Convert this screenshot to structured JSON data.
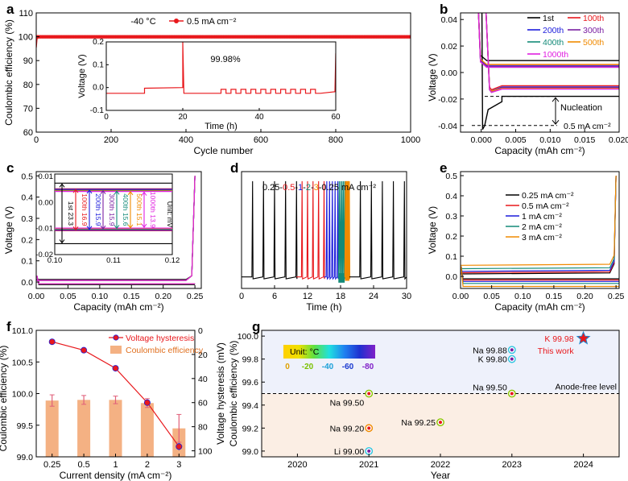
{
  "figure": {
    "panel_labels": [
      "a",
      "b",
      "c",
      "d",
      "e",
      "f",
      "g"
    ]
  },
  "chart_data": [
    {
      "panel": "a",
      "type": "line",
      "xlabel": "Cycle number",
      "ylabel": "Coulombic efficiency (%)",
      "xlim": [
        0,
        1000
      ],
      "ylim": [
        60,
        110
      ],
      "xticks": [
        0,
        200,
        400,
        600,
        800,
        1000
      ],
      "yticks": [
        60,
        70,
        80,
        90,
        100,
        110
      ],
      "annotation": "-40 °C",
      "legend": "0.5 mA cm⁻²",
      "series": [
        {
          "name": "0.5 mA cm⁻²",
          "x": [
            0,
            2,
            5,
            10,
            50,
            100,
            1000
          ],
          "y": [
            95.5,
            99.0,
            99.7,
            99.9,
            99.98,
            99.98,
            99.98
          ],
          "color": "#e8181c"
        }
      ],
      "inset": {
        "xlabel": "Time (h)",
        "ylabel": "Voltage (V)",
        "xlim": [
          0,
          60
        ],
        "ylim": [
          -0.1,
          0.2
        ],
        "xticks": [
          0,
          20,
          40,
          60
        ],
        "yticks": [
          -0.1,
          0.0,
          0.1,
          0.2
        ],
        "annotation": "99.98%",
        "series": [
          {
            "name": "voltage",
            "x": [
              0,
              10,
              10.2,
              20,
              20,
              20.4,
              30,
              30,
              60,
              60
            ],
            "y": [
              -0.025,
              -0.025,
              -0.002,
              0.005,
              0.2,
              -0.025,
              -0.025,
              -0.025,
              -0.02,
              0.15
            ]
          }
        ]
      }
    },
    {
      "panel": "b",
      "type": "line",
      "xlabel": "Capacity (mAh cm⁻²)",
      "ylabel": "Voltage (V)",
      "xlim": [
        -0.003,
        0.02
      ],
      "ylim": [
        -0.045,
        0.045
      ],
      "xticks": [
        0.0,
        0.005,
        0.01,
        0.015,
        0.02
      ],
      "xtick_labels": [
        "0.000",
        "0.005",
        "0.010",
        "0.015",
        "0.020"
      ],
      "yticks": [
        -0.04,
        -0.02,
        0.0,
        0.02,
        0.04
      ],
      "ytick_labels": [
        "-0.04",
        "-0.02",
        "0.00",
        "0.02",
        "0.04"
      ],
      "annotations": [
        "Nucleation",
        "0.5 mA cm⁻²"
      ],
      "series": [
        {
          "name": "1st",
          "color": "#000000",
          "charge": 0.009,
          "discharge": -0.018,
          "nuc": -0.04
        },
        {
          "name": "100th",
          "color": "#e8181c",
          "charge": 0.006,
          "discharge": -0.01,
          "nuc": -0.013
        },
        {
          "name": "200th",
          "color": "#1c1cdc",
          "charge": 0.005,
          "discharge": -0.011,
          "nuc": -0.014
        },
        {
          "name": "300th",
          "color": "#7a1fa2",
          "charge": 0.0045,
          "discharge": -0.0115,
          "nuc": -0.014
        },
        {
          "name": "400th",
          "color": "#138a78",
          "charge": 0.004,
          "discharge": -0.012,
          "nuc": -0.015
        },
        {
          "name": "500th",
          "color": "#f08a00",
          "charge": 0.006,
          "discharge": -0.012,
          "nuc": -0.014
        },
        {
          "name": "1000th",
          "color": "#e020e0",
          "charge": 0.004,
          "discharge": -0.0125,
          "nuc": -0.015
        }
      ]
    },
    {
      "panel": "c",
      "type": "line",
      "xlabel": "Capacity (mAh cm⁻²)",
      "ylabel": "Voltage (V)",
      "xlim": [
        0,
        0.26
      ],
      "ylim": [
        -0.03,
        0.52
      ],
      "xticks": [
        0.0,
        0.05,
        0.1,
        0.15,
        0.2,
        0.25
      ],
      "xtick_labels": [
        "0.00",
        "0.05",
        "0.10",
        "0.15",
        "0.20",
        "0.25"
      ],
      "yticks": [
        0.0,
        0.1,
        0.2,
        0.3,
        0.4,
        0.5
      ],
      "ytick_labels": [
        "0.0",
        "0.1",
        "0.2",
        "0.3",
        "0.4",
        "0.5"
      ],
      "inset": {
        "xlim": [
          0.1,
          0.12
        ],
        "ylim": [
          -0.02,
          0.011
        ],
        "xticks": [
          0.1,
          0.11,
          0.12
        ],
        "xtick_labels": [
          "0.10",
          "0.11",
          "0.12"
        ],
        "yticks": [
          -0.02,
          -0.01,
          0.0,
          0.01
        ],
        "ytick_labels": [
          "-0.02",
          "-0.01",
          "0.00",
          "0.01"
        ],
        "unit_label": "Unit: mV",
        "hysteresis": [
          {
            "label": "1st",
            "value": "23.3",
            "color": "#000000"
          },
          {
            "label": "100th",
            "value": "16.9",
            "color": "#e8181c"
          },
          {
            "label": "200th",
            "value": "15.9",
            "color": "#1c1cdc"
          },
          {
            "label": "300th",
            "value": "15.9",
            "color": "#7a1fa2"
          },
          {
            "label": "400th",
            "value": "15.6",
            "color": "#138a78"
          },
          {
            "label": "500th",
            "value": "15.1",
            "color": "#f08a00"
          },
          {
            "label": "1000th",
            "value": "13.9",
            "color": "#e020e0"
          }
        ]
      }
    },
    {
      "panel": "d",
      "type": "line",
      "xlabel": "Time (h)",
      "ylabel": "",
      "xlim": [
        0,
        30
      ],
      "ylim": [
        -0.06,
        0.55
      ],
      "xticks": [
        0,
        6,
        12,
        18,
        24,
        30
      ],
      "title_parts": [
        {
          "text": "0.25-",
          "color": "#000000"
        },
        {
          "text": "0.5",
          "color": "#e8181c"
        },
        {
          "text": "-",
          "color": "#000000"
        },
        {
          "text": "1",
          "color": "#1c1cdc"
        },
        {
          "text": "-",
          "color": "#000000"
        },
        {
          "text": "2",
          "color": "#138a78"
        },
        {
          "text": "-",
          "color": "#000000"
        },
        {
          "text": "3",
          "color": "#f08a00"
        },
        {
          "text": "-0.25 mA cm⁻²",
          "color": "#000000"
        }
      ],
      "segments": [
        {
          "rate": "0.25",
          "color": "#000000",
          "t_start": 0,
          "t_end": 10,
          "spikes": [
            2,
            4,
            6,
            8,
            10
          ]
        },
        {
          "rate": "0.5",
          "color": "#e8181c",
          "t_start": 10,
          "t_end": 15,
          "spikes": [
            11,
            12,
            13,
            14,
            15
          ]
        },
        {
          "rate": "1",
          "color": "#1c1cdc",
          "t_start": 15,
          "t_end": 17.5,
          "spikes": [
            15.5,
            16,
            16.5,
            17,
            17.5
          ]
        },
        {
          "rate": "2",
          "color": "#138a78",
          "t_start": 17.5,
          "t_end": 18.75,
          "spikes": [
            17.75,
            18,
            18.25,
            18.5,
            18.75
          ]
        },
        {
          "rate": "3",
          "color": "#f08a00",
          "t_start": 18.75,
          "t_end": 19.6,
          "spikes": [
            18.9,
            19.1,
            19.3,
            19.45,
            19.6
          ]
        },
        {
          "rate": "0.25",
          "color": "#000000",
          "t_start": 19.6,
          "t_end": 30,
          "spikes": [
            21.6,
            23.6,
            25.6,
            27.6,
            29.6
          ]
        }
      ]
    },
    {
      "panel": "e",
      "type": "line",
      "xlabel": "Capacity (mAh cm⁻²)",
      "ylabel": "Voltage (V)",
      "xlim": [
        0,
        0.255
      ],
      "ylim": [
        -0.06,
        0.52
      ],
      "xticks": [
        0.0,
        0.05,
        0.1,
        0.15,
        0.2,
        0.25
      ],
      "xtick_labels": [
        "0.00",
        "0.05",
        "0.10",
        "0.15",
        "0.20",
        "0.25"
      ],
      "yticks": [
        0.0,
        0.1,
        0.2,
        0.3,
        0.4,
        0.5
      ],
      "ytick_labels": [
        "0.0",
        "0.1",
        "0.2",
        "0.3",
        "0.4",
        "0.5"
      ],
      "series": [
        {
          "name": "0.25 mA cm⁻²",
          "color": "#000000",
          "charge": 0.012,
          "discharge": -0.012
        },
        {
          "name": "0.5 mA cm⁻²",
          "color": "#e8181c",
          "charge": 0.018,
          "discharge": -0.018
        },
        {
          "name": "1 mA cm⁻²",
          "color": "#1c1cdc",
          "charge": 0.025,
          "discharge": -0.025
        },
        {
          "name": "2 mA cm⁻²",
          "color": "#138a78",
          "charge": 0.038,
          "discharge": -0.035
        },
        {
          "name": "3 mA cm⁻²",
          "color": "#f08a00",
          "charge": 0.055,
          "discharge": -0.05
        }
      ]
    },
    {
      "panel": "f",
      "type": "bar",
      "xlabel": "Current density (mA cm⁻²)",
      "ylabel": "Coulombic efficiency (%)",
      "y2label": "Voltage hysteresis (mV)",
      "categories": [
        "0.25",
        "0.5",
        "1",
        "2",
        "3"
      ],
      "ylim": [
        99.0,
        101.0
      ],
      "yticks": [
        99.0,
        99.5,
        100.0,
        100.5,
        101.0
      ],
      "ytick_labels": [
        "99.0",
        "99.5",
        "100.0",
        "100.5",
        "101.0"
      ],
      "y2lim": [
        0,
        105
      ],
      "y2ticks": [
        0,
        20,
        40,
        60,
        80,
        100
      ],
      "series": [
        {
          "name": "Coulombic efficiency",
          "type": "bar",
          "color": "#f4b183",
          "values": [
            99.89,
            99.9,
            99.9,
            99.85,
            99.45
          ],
          "errors": [
            0.09,
            0.07,
            0.06,
            0.07,
            0.22
          ]
        },
        {
          "name": "Voltage hysteresis",
          "type": "line",
          "color": "#e8181c",
          "axis": "y2",
          "values": [
            9.5,
            16.5,
            31.5,
            60.0,
            96.5
          ],
          "errors": [
            0.8,
            0.8,
            0.8,
            1.5,
            3.0
          ]
        }
      ],
      "legend": [
        "Voltage hysteresis",
        "Coulombic efficiency"
      ]
    },
    {
      "panel": "g",
      "type": "scatter",
      "xlabel": "Year",
      "ylabel": "Coulombic efficiency (%)",
      "xlim": [
        2019.5,
        2024.5
      ],
      "ylim": [
        98.95,
        100.05
      ],
      "xticks": [
        2020,
        2021,
        2022,
        2023,
        2024
      ],
      "yticks": [
        99.0,
        99.2,
        99.4,
        99.6,
        99.8,
        100.0
      ],
      "ytick_labels": [
        "99.0",
        "99.2",
        "99.4",
        "99.6",
        "99.8",
        "100.0"
      ],
      "threshold": {
        "y": 99.5,
        "label": "Anode-free level"
      },
      "colorbar": {
        "title": "Unit: °C",
        "ticks": [
          "0",
          "-20",
          "-40",
          "-60",
          "-80"
        ],
        "tick_colors": [
          "#e0a000",
          "#7ac000",
          "#1aa0d8",
          "#1838d0",
          "#8020c8"
        ]
      },
      "points": [
        {
          "label": "Li 99.00",
          "x": 2021,
          "y": 99.0,
          "color": "#2cc4e0"
        },
        {
          "label": "Na 99.20",
          "x": 2021,
          "y": 99.2,
          "color": "#f08a00"
        },
        {
          "label": "Na 99.50",
          "x": 2021,
          "y": 99.5,
          "color": "#8ac400"
        },
        {
          "label": "Na 99.25",
          "x": 2022,
          "y": 99.25,
          "color": "#8ac400"
        },
        {
          "label": "Na 99.50",
          "x": 2023,
          "y": 99.5,
          "color": "#8ac400"
        },
        {
          "label": "K 99.80",
          "x": 2023,
          "y": 99.8,
          "color": "#2cc4e0"
        },
        {
          "label": "Na 99.88",
          "x": 2023,
          "y": 99.88,
          "color": "#2cc4e0"
        },
        {
          "label": "K 99.98",
          "x": 2024,
          "y": 99.98,
          "color": "#1aa0d8",
          "star": true
        }
      ],
      "this_work_label": "This work"
    }
  ]
}
